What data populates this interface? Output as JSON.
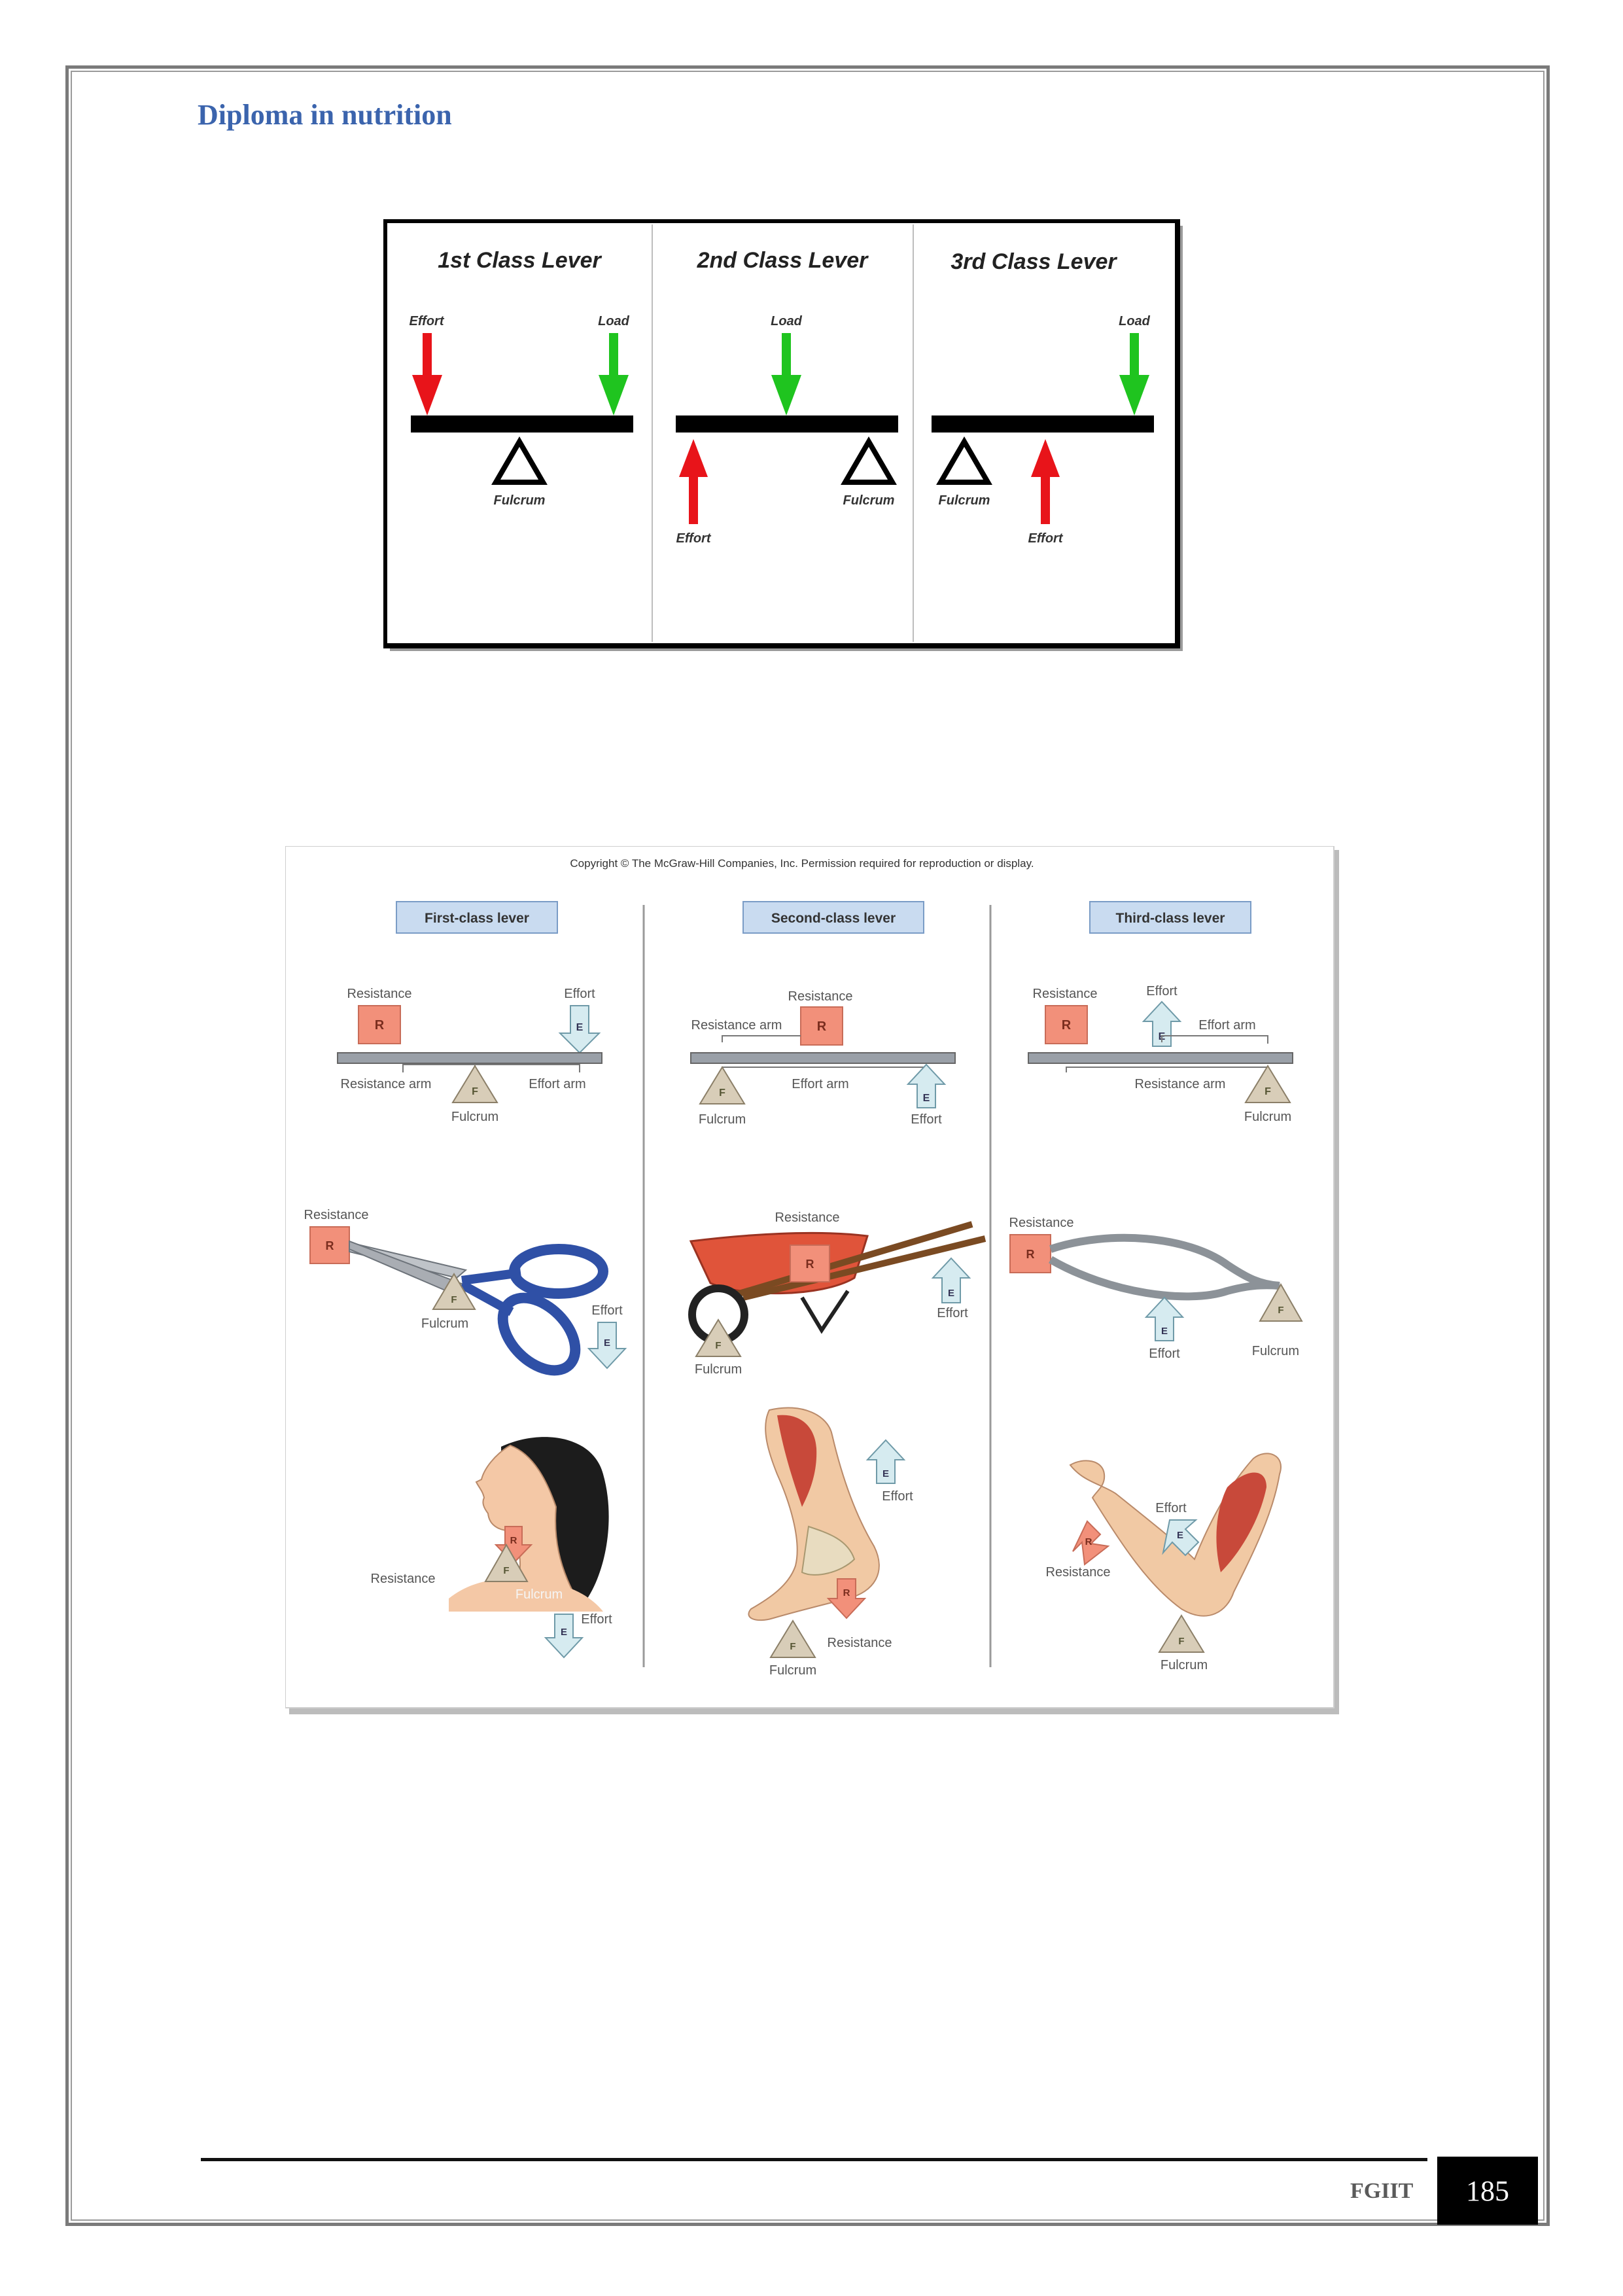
{
  "header": {
    "title": "Diploma in nutrition"
  },
  "figure_top": {
    "panels": [
      {
        "title": "1st Class Lever",
        "labels": {
          "effort": "Effort",
          "load": "Load",
          "fulcrum": "Fulcrum"
        }
      },
      {
        "title": "2nd Class Lever",
        "labels": {
          "effort": "Effort",
          "load": "Load",
          "fulcrum": "Fulcrum"
        }
      },
      {
        "title": "3rd Class Lever",
        "labels": {
          "effort": "Effort",
          "load": "Load",
          "fulcrum": "Fulcrum"
        }
      }
    ],
    "colors": {
      "effort": "#e8141a",
      "load": "#1fc41f",
      "beam": "#000000"
    }
  },
  "figure_bottom": {
    "copyright": "Copyright © The McGraw-Hill Companies, Inc. Permission required for reproduction or display.",
    "columns": [
      {
        "header": "First-class lever",
        "diagram": {
          "resistance": "Resistance",
          "effort": "Effort",
          "resistance_arm": "Resistance arm",
          "effort_arm": "Effort arm",
          "fulcrum": "Fulcrum"
        },
        "example": {
          "resistance": "Resistance",
          "effort": "Effort",
          "fulcrum": "Fulcrum"
        },
        "body": {
          "resistance": "Resistance",
          "fulcrum": "Fulcrum",
          "effort": "Effort"
        }
      },
      {
        "header": "Second-class lever",
        "diagram": {
          "resistance": "Resistance",
          "resistance_arm": "Resistance arm",
          "effort_arm": "Effort arm",
          "fulcrum": "Fulcrum",
          "effort": "Effort"
        },
        "example": {
          "resistance": "Resistance",
          "effort": "Effort",
          "fulcrum": "Fulcrum"
        },
        "body": {
          "effort": "Effort",
          "resistance": "Resistance",
          "fulcrum": "Fulcrum"
        }
      },
      {
        "header": "Third-class lever",
        "diagram": {
          "resistance": "Resistance",
          "effort": "Effort",
          "effort_arm": "Effort arm",
          "resistance_arm": "Resistance arm",
          "fulcrum": "Fulcrum"
        },
        "example": {
          "resistance": "Resistance",
          "effort": "Effort",
          "fulcrum": "Fulcrum"
        },
        "body": {
          "effort": "Effort",
          "resistance": "Resistance",
          "fulcrum": "Fulcrum"
        }
      }
    ],
    "symbols": {
      "resistance": "R",
      "effort": "E",
      "fulcrum": "F"
    }
  },
  "footer": {
    "org": "FGIIT",
    "page_number": "185"
  }
}
